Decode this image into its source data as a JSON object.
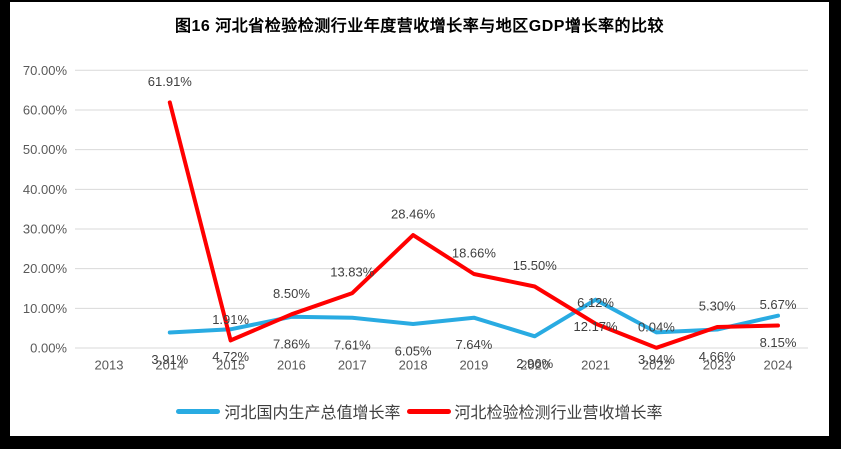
{
  "chart_data": {
    "type": "line",
    "title": "图16 河北省检验检测行业年度营收增长率与地区GDP增长率的比较",
    "categories": [
      "2013",
      "2014",
      "2015",
      "2016",
      "2017",
      "2018",
      "2019",
      "2020",
      "2021",
      "2022",
      "2023",
      "2024"
    ],
    "series": [
      {
        "name": "河北国内生产总值增长率",
        "color": "#29abe2",
        "start_category": "2014",
        "label_position": "below",
        "values": [
          3.91,
          4.72,
          7.86,
          7.61,
          6.05,
          7.64,
          2.96,
          12.17,
          3.94,
          4.66,
          8.15
        ]
      },
      {
        "name": "河北检验检测行业营收增长率",
        "color": "#ff0000",
        "start_category": "2014",
        "label_position": "above",
        "values": [
          61.91,
          1.91,
          8.5,
          13.83,
          28.46,
          18.66,
          15.5,
          6.12,
          0.04,
          5.3,
          5.67
        ]
      }
    ],
    "ylim": [
      0,
      70
    ],
    "ytick_step": 10,
    "ytick_labels": [
      "0.00%",
      "10.00%",
      "20.00%",
      "30.00%",
      "40.00%",
      "50.00%",
      "60.00%",
      "70.00%"
    ],
    "value_suffix": "%",
    "grid": true,
    "legend_position": "bottom",
    "colors": {
      "gridline": "#d9d9d9",
      "axis_text": "#595959",
      "data_label_text": "#404040",
      "title_text": "#000000",
      "frame": "#000000"
    }
  }
}
